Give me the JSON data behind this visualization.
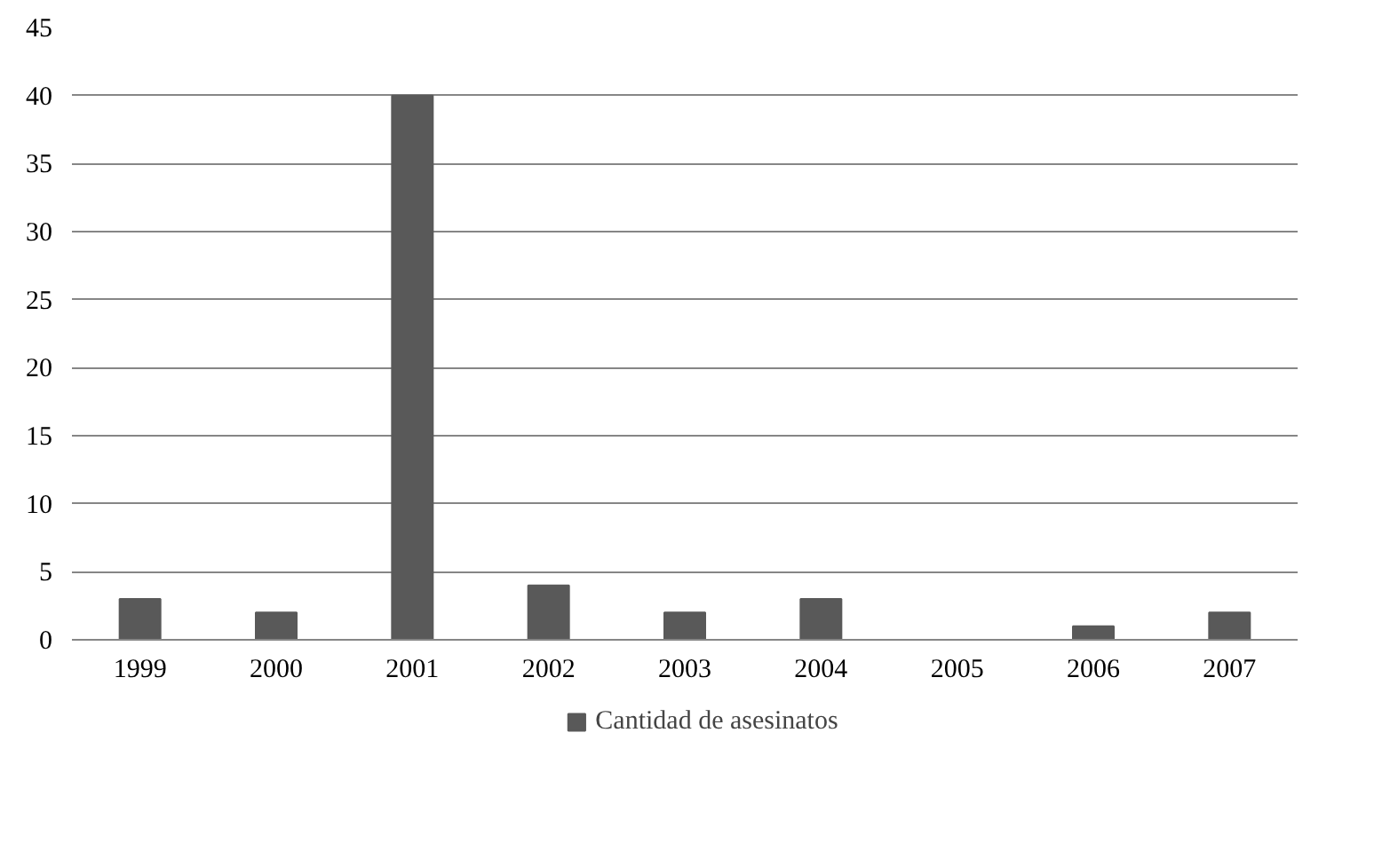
{
  "chart_data": {
    "type": "bar",
    "categories": [
      "1999",
      "2000",
      "2001",
      "2002",
      "2003",
      "2004",
      "2005",
      "2006",
      "2007"
    ],
    "series": [
      {
        "name": "Cantidad de asesinatos",
        "color": "#595959",
        "values": [
          3,
          2,
          40,
          4,
          2,
          3,
          0,
          1,
          2
        ]
      }
    ],
    "ylim": [
      0,
      45
    ],
    "yticks": [
      0,
      5,
      10,
      15,
      20,
      25,
      30,
      35,
      40,
      45
    ],
    "grid": "y",
    "legend": "bottom"
  }
}
